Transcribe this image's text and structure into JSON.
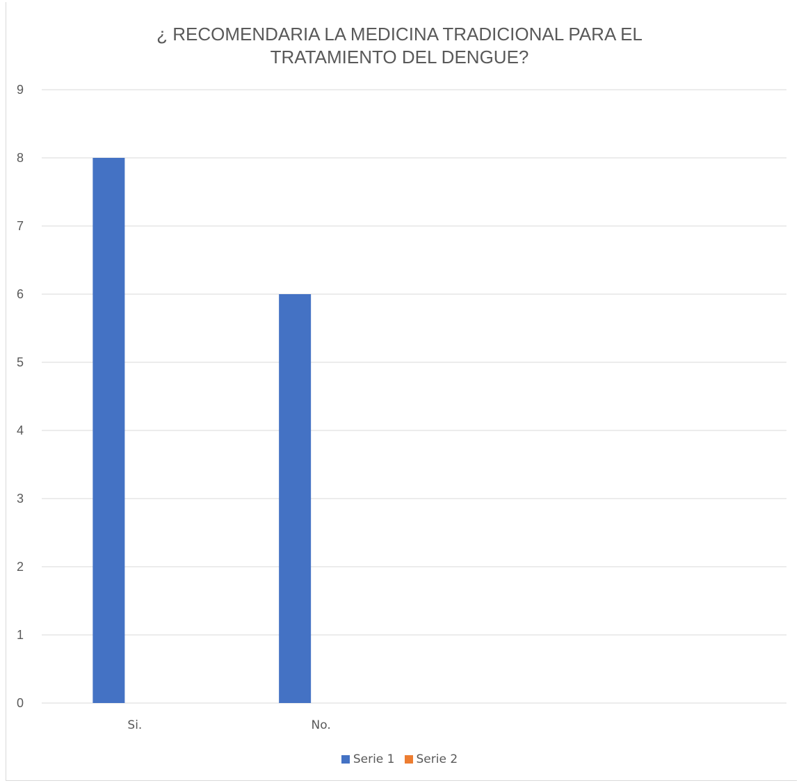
{
  "chart_data": {
    "type": "bar",
    "title_line1": "¿ RECOMENDARIA LA MEDICINA TRADICIONAL PARA EL",
    "title_line2": "TRATAMIENTO DEL DENGUE?",
    "categories": [
      "Si.",
      "No.",
      "",
      ""
    ],
    "series": [
      {
        "name": "Serie 1",
        "color": "#4472c4",
        "values": [
          8,
          6,
          null,
          null
        ]
      },
      {
        "name": "Serie 2",
        "color": "#ed7d31",
        "values": [
          null,
          null,
          null,
          null
        ]
      }
    ],
    "ylim": [
      0,
      9
    ],
    "yticks": [
      0,
      1,
      2,
      3,
      4,
      5,
      6,
      7,
      8,
      9
    ],
    "grid": true,
    "legend_position": "bottom"
  }
}
